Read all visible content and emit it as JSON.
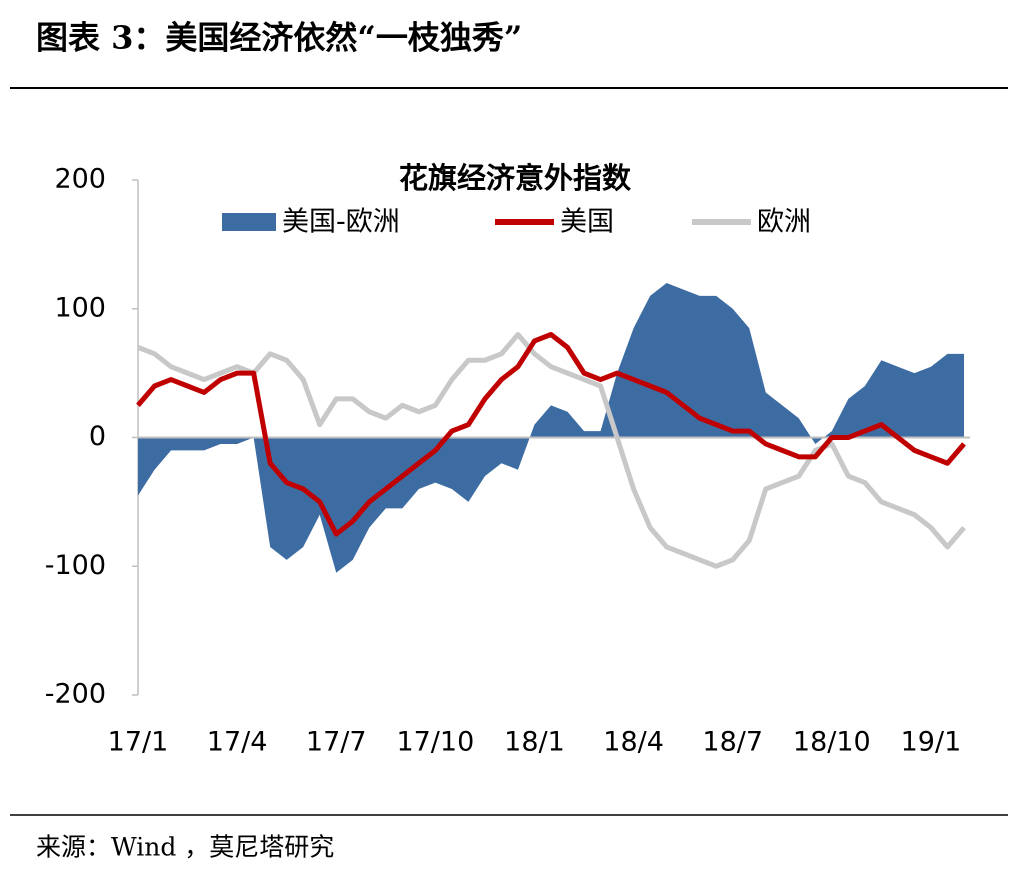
{
  "header": {
    "title": "图表 3：美国经济依然“一枝独秀”"
  },
  "chart_data": {
    "type": "line",
    "title": "花旗经济意外指数",
    "categories": [
      "17/1",
      null,
      null,
      null,
      null,
      null,
      "17/4",
      null,
      null,
      null,
      null,
      null,
      "17/7",
      null,
      null,
      null,
      null,
      null,
      "17/10",
      null,
      null,
      null,
      null,
      null,
      "18/1",
      null,
      null,
      null,
      null,
      null,
      "18/4",
      null,
      null,
      null,
      null,
      null,
      "18/7",
      null,
      null,
      null,
      null,
      null,
      "18/10",
      null,
      null,
      null,
      null,
      null,
      "19/1",
      null,
      null
    ],
    "series": [
      {
        "name": "美国-欧洲",
        "kind": "area",
        "color": "#3d6ca3",
        "values": [
          -45,
          -25,
          -10,
          -10,
          -10,
          -5,
          -5,
          0,
          -85,
          -95,
          -85,
          -60,
          -105,
          -95,
          -70,
          -55,
          -55,
          -40,
          -35,
          -40,
          -50,
          -30,
          -20,
          -25,
          10,
          25,
          20,
          5,
          5,
          50,
          85,
          110,
          120,
          115,
          110,
          110,
          100,
          85,
          35,
          25,
          15,
          -5,
          5,
          30,
          40,
          60,
          55,
          50,
          55,
          65,
          65
        ]
      },
      {
        "name": "美国",
        "kind": "line",
        "color": "#c00000",
        "values": [
          25,
          40,
          45,
          40,
          35,
          45,
          50,
          50,
          -20,
          -35,
          -40,
          -50,
          -75,
          -65,
          -50,
          -40,
          -30,
          -20,
          -10,
          5,
          10,
          30,
          45,
          55,
          75,
          80,
          70,
          50,
          45,
          50,
          45,
          40,
          35,
          25,
          15,
          10,
          5,
          5,
          -5,
          -10,
          -15,
          -15,
          0,
          0,
          5,
          10,
          0,
          -10,
          -15,
          -20,
          -5
        ]
      },
      {
        "name": "欧洲",
        "kind": "line",
        "color": "#c8c8c8",
        "values": [
          70,
          65,
          55,
          50,
          45,
          50,
          55,
          50,
          65,
          60,
          45,
          10,
          30,
          30,
          20,
          15,
          25,
          20,
          25,
          45,
          60,
          60,
          65,
          80,
          65,
          55,
          50,
          45,
          40,
          0,
          -40,
          -70,
          -85,
          -90,
          -95,
          -100,
          -95,
          -80,
          -40,
          -35,
          -30,
          -10,
          -5,
          -30,
          -35,
          -50,
          -55,
          -60,
          -70,
          -85,
          -70
        ]
      }
    ],
    "ylim": [
      -200,
      200
    ],
    "yticks": [
      -200,
      -100,
      0,
      100,
      200
    ]
  },
  "source": "来源：Wind ，莫尼塔研究"
}
